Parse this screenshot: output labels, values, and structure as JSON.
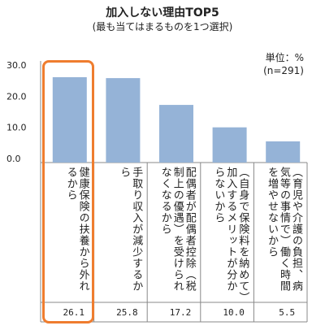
{
  "chart_data": {
    "type": "bar",
    "title": "加入しない理由TOP5",
    "subtitle": "(最も当てはまるものを1つ選択)",
    "unit_note": "単位：%",
    "n_note": "(n=291)",
    "categories": [
      "健康保険の扶養から外れるから",
      "手取り収入が減少するから",
      "配偶者が配偶者控除（税制上の優遇）を受けられなくなるから",
      "（自身で保険料を納めて）加入するメリットが分からないから",
      "（育児や介護の負担、病気等の事情で）働く時間を増やせないから"
    ],
    "values": [
      26.1,
      25.8,
      17.2,
      10.0,
      5.5
    ],
    "value_labels": [
      "26.1",
      "25.8",
      "17.2",
      "10.0",
      "5.5"
    ],
    "yticks": [
      "30.0",
      "20.0",
      "10.0",
      "0.0"
    ],
    "ytick_values": [
      30,
      20,
      10,
      0
    ],
    "ylim": [
      0,
      30
    ],
    "xlabel": "",
    "ylabel": "",
    "grid": false,
    "bar_color": "#95b3d7",
    "highlight_color": "#ef7d2f",
    "highlight_index": 0
  }
}
